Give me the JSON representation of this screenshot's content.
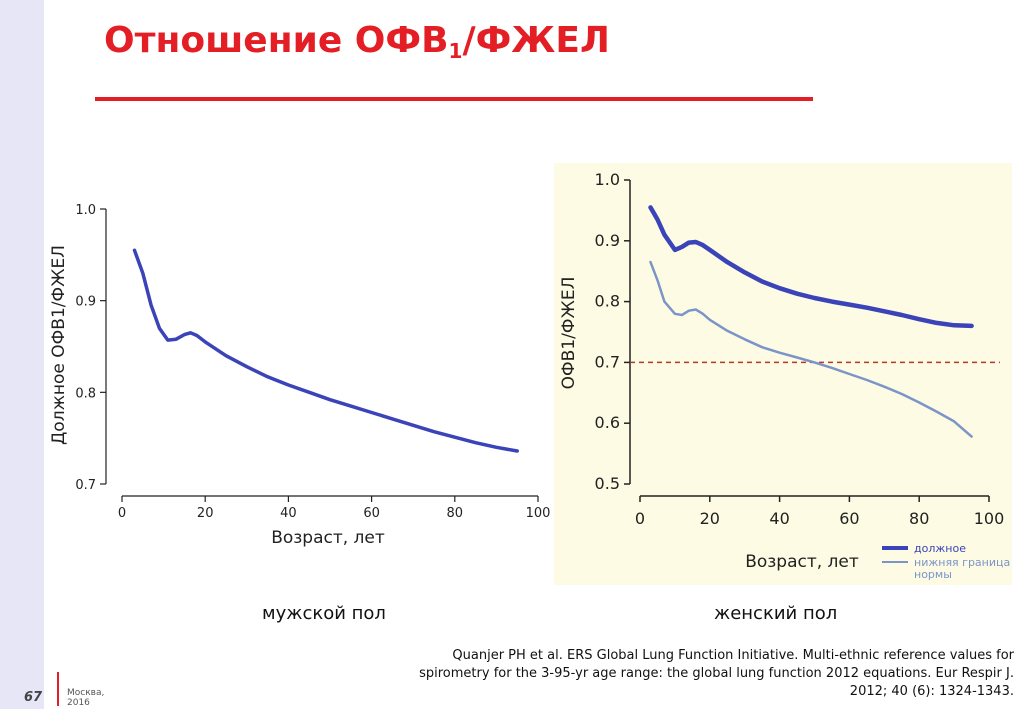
{
  "slide": {
    "title_main": "Отношение ОФВ",
    "title_sub": "1",
    "title_tail": "/ФЖЕЛ",
    "page_number": "67",
    "footer_city": "Москва,",
    "footer_year": "2016",
    "citation_lines": [
      "Quanjer PH et al. ERS Global Lung Function Initiative. Multi-ethnic reference values for",
      "spirometry for the 3-95-yr age range: the global lung function 2012 equations. Eur Respir J.",
      "2012; 40 (6): 1324-1343."
    ],
    "caption_male": "мужской пол",
    "caption_female": "женский пол"
  },
  "colors": {
    "title": "#e31e24",
    "predicted": "#3b43b8",
    "lln": "#7b95c8",
    "reference": "#b03a2e",
    "left_band": "#e6e6f6",
    "female_panel_bg": "#fdfbe3"
  },
  "chart_data": [
    {
      "type": "line",
      "id": "male",
      "xlabel": "Возраст, лет",
      "ylabel": "Должное ОФВ1/ФЖЕЛ",
      "xlim": [
        0,
        100
      ],
      "ylim": [
        0.7,
        1.0
      ],
      "xticks": [
        0,
        20,
        40,
        60,
        80,
        100
      ],
      "yticks": [
        0.7,
        0.8,
        0.9,
        1.0
      ],
      "ytick_labels": [
        "0.7",
        "0.8",
        "0.9",
        "1.0"
      ],
      "series": [
        {
          "role": "predicted",
          "x": [
            3,
            5,
            7,
            9,
            11,
            13,
            15,
            16.5,
            18,
            20,
            25,
            30,
            35,
            40,
            45,
            50,
            55,
            60,
            65,
            70,
            75,
            80,
            85,
            90,
            95
          ],
          "y": [
            0.955,
            0.93,
            0.895,
            0.87,
            0.857,
            0.858,
            0.863,
            0.865,
            0.862,
            0.855,
            0.84,
            0.828,
            0.817,
            0.808,
            0.8,
            0.792,
            0.785,
            0.778,
            0.771,
            0.764,
            0.757,
            0.751,
            0.745,
            0.74,
            0.736
          ]
        }
      ]
    },
    {
      "type": "line",
      "id": "female",
      "xlabel": "Возраст, лет",
      "ylabel": "ОФВ1/ФЖЕЛ",
      "xlim": [
        0,
        100
      ],
      "ylim": [
        0.5,
        1.0
      ],
      "xticks": [
        0,
        20,
        40,
        60,
        80,
        100
      ],
      "yticks": [
        0.5,
        0.6,
        0.7,
        0.8,
        0.9,
        1.0
      ],
      "ytick_labels": [
        "0.5",
        "0.6",
        "0.7",
        "0.8",
        "0.9",
        "1.0"
      ],
      "reference_line": 0.7,
      "legend": {
        "position": "bottom-right",
        "entries": [
          "должное",
          "нижняя граница нормы"
        ]
      },
      "series": [
        {
          "name": "должное",
          "role": "predicted",
          "x": [
            3,
            5,
            7,
            10,
            12,
            14,
            16,
            18,
            20,
            25,
            30,
            35,
            40,
            45,
            50,
            55,
            60,
            65,
            70,
            75,
            80,
            85,
            90,
            95
          ],
          "y": [
            0.955,
            0.935,
            0.91,
            0.885,
            0.89,
            0.897,
            0.898,
            0.893,
            0.885,
            0.865,
            0.848,
            0.833,
            0.822,
            0.813,
            0.806,
            0.8,
            0.795,
            0.79,
            0.784,
            0.778,
            0.771,
            0.765,
            0.761,
            0.76
          ]
        },
        {
          "name": "нижняя граница нормы",
          "role": "lln",
          "x": [
            3,
            5,
            7,
            10,
            12,
            14,
            16,
            18,
            20,
            25,
            30,
            35,
            40,
            45,
            50,
            55,
            60,
            65,
            70,
            75,
            80,
            85,
            90,
            95
          ],
          "y": [
            0.865,
            0.835,
            0.8,
            0.78,
            0.778,
            0.785,
            0.787,
            0.78,
            0.77,
            0.752,
            0.738,
            0.725,
            0.716,
            0.708,
            0.7,
            0.691,
            0.681,
            0.671,
            0.66,
            0.648,
            0.634,
            0.619,
            0.603,
            0.578
          ]
        }
      ]
    }
  ]
}
